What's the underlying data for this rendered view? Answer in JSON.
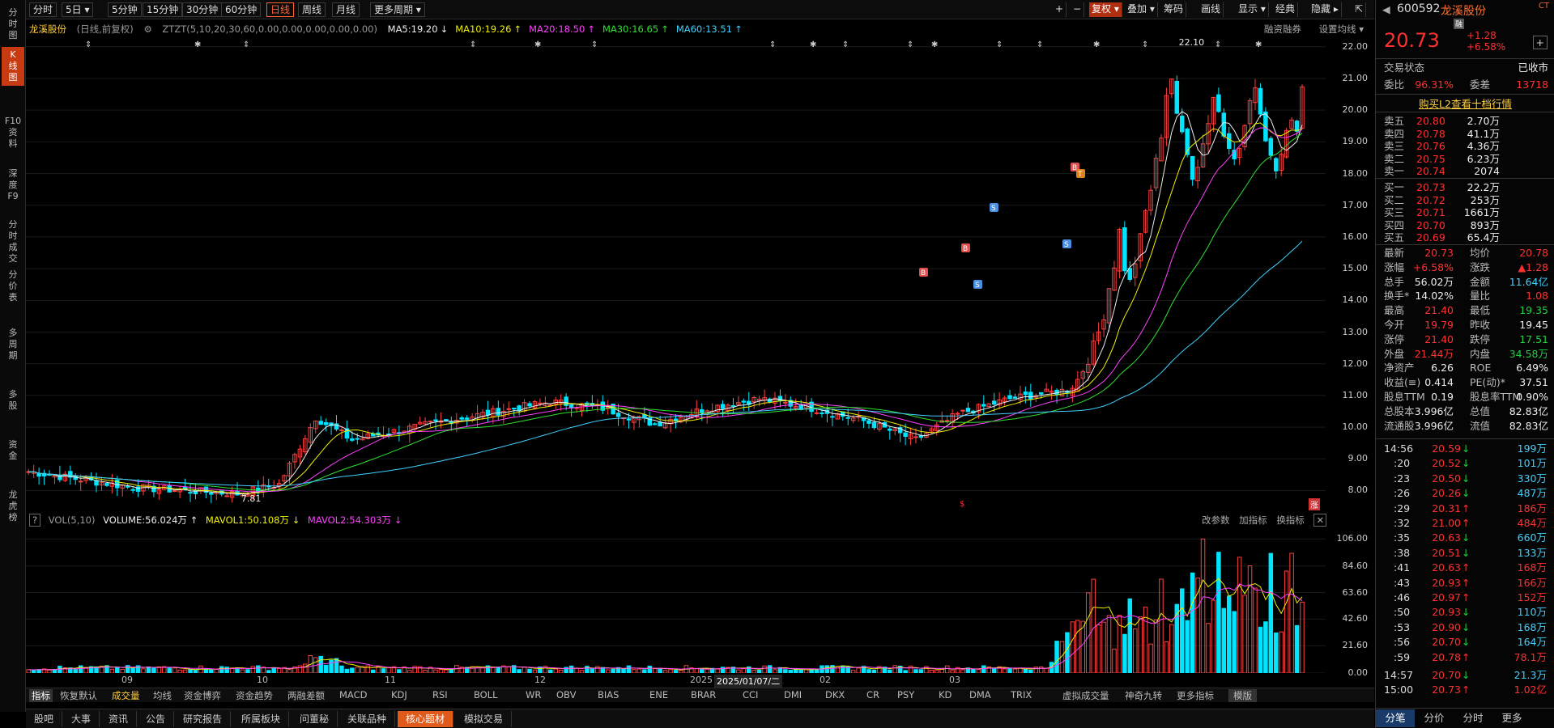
{
  "sidebar": {
    "tabs": [
      {
        "label": "分时图",
        "lines": [
          "分",
          "时",
          "图"
        ],
        "active": false
      },
      {
        "label": "K线图",
        "lines": [
          "K",
          "线",
          "图"
        ],
        "active": true
      },
      {
        "label": "F10资料",
        "lines": [
          "F10",
          "资",
          "料"
        ],
        "active": false
      },
      {
        "label": "深度F9",
        "lines": [
          "深",
          "度",
          "F9"
        ],
        "active": false
      },
      {
        "label": "分时成交",
        "lines": [
          "分",
          "时",
          "成",
          "交"
        ],
        "active": false
      },
      {
        "label": "分价表",
        "lines": [
          "分",
          "价",
          "表"
        ],
        "active": false
      },
      {
        "label": "多周期",
        "lines": [
          "多",
          "周",
          "期"
        ],
        "active": false
      },
      {
        "label": "多股",
        "lines": [
          "多",
          "股"
        ],
        "active": false
      },
      {
        "label": "资金",
        "lines": [
          "资",
          "金"
        ],
        "active": false
      },
      {
        "label": "龙虎榜",
        "lines": [
          "龙",
          "虎",
          "榜"
        ],
        "active": false
      }
    ]
  },
  "toolbar": {
    "periods": [
      "分时",
      "5日 ▾",
      "5分钟",
      "15分钟",
      "30分钟",
      "60分钟",
      "日线",
      "周线",
      "月线",
      "更多周期 ▾"
    ],
    "active_period": "日线",
    "right": [
      "+",
      "−",
      "复权 ▾",
      "叠加 ▾",
      "筹码",
      "画线",
      "显示 ▾",
      "经典",
      "隐藏 ▸",
      "⇱"
    ]
  },
  "main": {
    "stock_name": "龙溪股份",
    "period_note": "(日线,前复权)",
    "indicator": "ZTZT(5,10,20,30,60,0.00,0.00,0.00,0.00,0.00)",
    "ma": [
      {
        "label": "MA5:19.20",
        "arrow": "↓",
        "color": "#eeeeee"
      },
      {
        "label": "MA10:19.26",
        "arrow": "↑",
        "color": "#f0f000"
      },
      {
        "label": "MA20:18.50",
        "arrow": "↑",
        "color": "#ff40ff"
      },
      {
        "label": "MA30:16.65",
        "arrow": "↑",
        "color": "#30e030"
      },
      {
        "label": "MA60:13.51",
        "arrow": "↑",
        "color": "#40d0ff"
      }
    ],
    "top_right": [
      "融资融券",
      "设置均线 ▾"
    ],
    "high_label": "22.10",
    "low_label": "7.81",
    "price_axis": [
      "22.00",
      "21.00",
      "20.00",
      "19.00",
      "18.00",
      "17.00",
      "16.00",
      "15.00",
      "14.00",
      "13.00",
      "12.00",
      "11.00",
      "10.00",
      "9.00",
      "8.00"
    ],
    "vol_axis": [
      "106.00",
      "84.60",
      "63.60",
      "42.60",
      "21.60",
      "0.00"
    ],
    "vol_legend": {
      "name": "VOL(5,10)",
      "volume": "VOLUME:56.024万",
      "volume_arrow": "↑",
      "mavol1": "MAVOL1:50.108万",
      "mavol1_arrow": "↓",
      "mavol2": "MAVOL2:54.303万",
      "mavol2_arrow": "↓"
    },
    "vol_tools": [
      "改参数",
      "加指标",
      "换指标"
    ],
    "x_labels": [
      "09",
      "10",
      "11",
      "12",
      "2025",
      "2025/01/07/二",
      "02",
      "03"
    ],
    "marker_zhang": "涨",
    "marker_s": "$"
  },
  "bottom_tabs": {
    "items": [
      "指标",
      "恢复默认",
      "成交量",
      "均线",
      "资金博弈",
      "资金趋势",
      "两融差额",
      "MACD",
      "KDJ",
      "RSI",
      "BOLL",
      "WR",
      "OBV",
      "BIAS",
      "ENE",
      "BRAR",
      "CCI",
      "DMI",
      "DKX",
      "CR",
      "PSY",
      "KD",
      "DMA",
      "TRIX",
      "虚拟成交量",
      "神奇九转",
      "更多指标",
      "模版"
    ],
    "active": "成交量"
  },
  "page_tabs": {
    "items": [
      "股吧",
      "大事",
      "资讯",
      "公告",
      "研究报告",
      "所属板块",
      "问董秘",
      "关联品种",
      "核心题材",
      "模拟交易"
    ],
    "active": "核心题材"
  },
  "quote": {
    "code": "600592",
    "name": "龙溪股份",
    "tag": "融",
    "corner": "CT",
    "price": "20.73",
    "change": "+1.28",
    "pct": "+6.58%",
    "status_label": "交易状态",
    "status": "已收市",
    "weibi_label": "委比",
    "weibi": "96.31%",
    "weicha_label": "委差",
    "weicha": "13718",
    "l2_link": "购买L2查看十档行情",
    "asks": [
      {
        "label": "卖五",
        "price": "20.80",
        "vol": "2.70万"
      },
      {
        "label": "卖四",
        "price": "20.78",
        "vol": "41.1万"
      },
      {
        "label": "卖三",
        "price": "20.76",
        "vol": "4.36万"
      },
      {
        "label": "卖二",
        "price": "20.75",
        "vol": "6.23万"
      },
      {
        "label": "卖一",
        "price": "20.74",
        "vol": "2074"
      }
    ],
    "bids": [
      {
        "label": "买一",
        "price": "20.73",
        "vol": "22.2万"
      },
      {
        "label": "买二",
        "price": "20.72",
        "vol": "253万"
      },
      {
        "label": "买三",
        "price": "20.71",
        "vol": "1661万"
      },
      {
        "label": "买四",
        "price": "20.70",
        "vol": "893万"
      },
      {
        "label": "买五",
        "price": "20.69",
        "vol": "65.4万"
      }
    ],
    "stats": [
      [
        {
          "l": "最新",
          "v": "20.73",
          "c": "up"
        },
        {
          "l": "均价",
          "v": "20.78",
          "c": "up"
        }
      ],
      [
        {
          "l": "涨幅",
          "v": "+6.58%",
          "c": "up"
        },
        {
          "l": "涨跌",
          "v": "▲1.28",
          "c": "up"
        }
      ],
      [
        {
          "l": "总手",
          "v": "56.02万",
          "c": "white"
        },
        {
          "l": "金额",
          "v": "11.64亿",
          "c": "cyan"
        }
      ],
      [
        {
          "l": "换手*",
          "v": "14.02%",
          "c": "white"
        },
        {
          "l": "量比",
          "v": "1.08",
          "c": "up"
        }
      ],
      [
        {
          "l": "最高",
          "v": "21.40",
          "c": "up"
        },
        {
          "l": "最低",
          "v": "19.35",
          "c": "down"
        }
      ],
      [
        {
          "l": "今开",
          "v": "19.79",
          "c": "up"
        },
        {
          "l": "昨收",
          "v": "19.45",
          "c": "white"
        }
      ],
      [
        {
          "l": "涨停",
          "v": "21.40",
          "c": "up"
        },
        {
          "l": "跌停",
          "v": "17.51",
          "c": "down"
        }
      ],
      [
        {
          "l": "外盘",
          "v": "21.44万",
          "c": "up"
        },
        {
          "l": "内盘",
          "v": "34.58万",
          "c": "down"
        }
      ],
      [
        {
          "l": "净资产",
          "v": "6.26",
          "c": "white"
        },
        {
          "l": "ROE",
          "v": "6.49%",
          "c": "white"
        }
      ],
      [
        {
          "l": "收益(≡)",
          "v": "0.414",
          "c": "white"
        },
        {
          "l": "PE(动)*",
          "v": "37.51",
          "c": "white"
        }
      ],
      [
        {
          "l": "股息TTM",
          "v": "0.19",
          "c": "white"
        },
        {
          "l": "股息率TTM",
          "v": "0.90%",
          "c": "white"
        }
      ],
      [
        {
          "l": "总股本",
          "v": "3.996亿",
          "c": "white"
        },
        {
          "l": "总值",
          "v": "82.83亿",
          "c": "white"
        }
      ],
      [
        {
          "l": "流通股",
          "v": "3.996亿",
          "c": "white"
        },
        {
          "l": "流值",
          "v": "82.83亿",
          "c": "white"
        }
      ]
    ],
    "ticks": [
      {
        "t": "14:56",
        "p": "20.59",
        "a": "↓",
        "v": "199万",
        "vc": "cyan"
      },
      {
        "t": ":20",
        "p": "20.52",
        "a": "↓",
        "v": "101万",
        "vc": "cyan"
      },
      {
        "t": ":23",
        "p": "20.50",
        "a": "↓",
        "v": "330万",
        "vc": "cyan"
      },
      {
        "t": ":26",
        "p": "20.26",
        "a": "↓",
        "v": "487万",
        "vc": "cyan"
      },
      {
        "t": ":29",
        "p": "20.31",
        "a": "↑",
        "v": "186万",
        "vc": "up"
      },
      {
        "t": ":32",
        "p": "21.00",
        "a": "↑",
        "v": "484万",
        "vc": "up"
      },
      {
        "t": ":35",
        "p": "20.63",
        "a": "↓",
        "v": "660万",
        "vc": "cyan"
      },
      {
        "t": ":38",
        "p": "20.51",
        "a": "↓",
        "v": "133万",
        "vc": "cyan"
      },
      {
        "t": ":41",
        "p": "20.63",
        "a": "↑",
        "v": "168万",
        "vc": "up"
      },
      {
        "t": ":43",
        "p": "20.93",
        "a": "↑",
        "v": "166万",
        "vc": "up"
      },
      {
        "t": ":46",
        "p": "20.97",
        "a": "↑",
        "v": "152万",
        "vc": "up"
      },
      {
        "t": ":50",
        "p": "20.93",
        "a": "↓",
        "v": "110万",
        "vc": "cyan"
      },
      {
        "t": ":53",
        "p": "20.90",
        "a": "↓",
        "v": "168万",
        "vc": "cyan"
      },
      {
        "t": ":56",
        "p": "20.70",
        "a": "↓",
        "v": "164万",
        "vc": "cyan"
      },
      {
        "t": ":59",
        "p": "20.78",
        "a": "↑",
        "v": "78.1万",
        "vc": "up"
      },
      {
        "t": "14:57",
        "p": "20.70",
        "a": "↓",
        "v": "21.3万",
        "vc": "cyan"
      },
      {
        "t": "15:00",
        "p": "20.73",
        "a": "↑",
        "v": "1.02亿",
        "vc": "up"
      }
    ],
    "tabs": [
      "分笔",
      "分价",
      "分时",
      "更多"
    ],
    "active_tab": "分笔"
  }
}
